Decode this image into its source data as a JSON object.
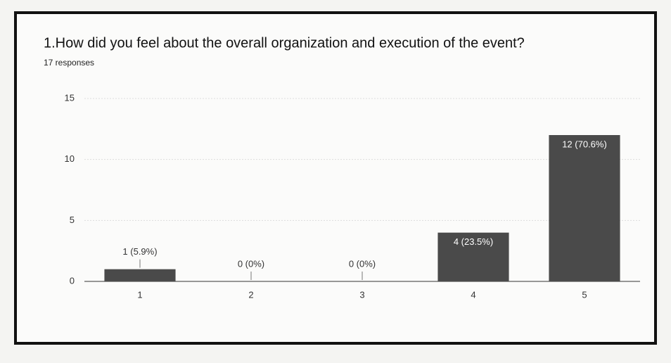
{
  "chart_data": {
    "type": "bar",
    "title": "1.How did you feel about the overall organization and execution of the event?",
    "subtitle": "17 responses",
    "categories": [
      "1",
      "2",
      "3",
      "4",
      "5"
    ],
    "values": [
      1,
      0,
      0,
      4,
      12
    ],
    "value_labels": [
      "1 (5.9%)",
      "0 (0%)",
      "0 (0%)",
      "4 (23.5%)",
      "12 (70.6%)"
    ],
    "color": "#4a4a4a",
    "ylim": [
      0,
      15
    ],
    "yticks": [
      0,
      5,
      10,
      15
    ],
    "grid": true
  }
}
